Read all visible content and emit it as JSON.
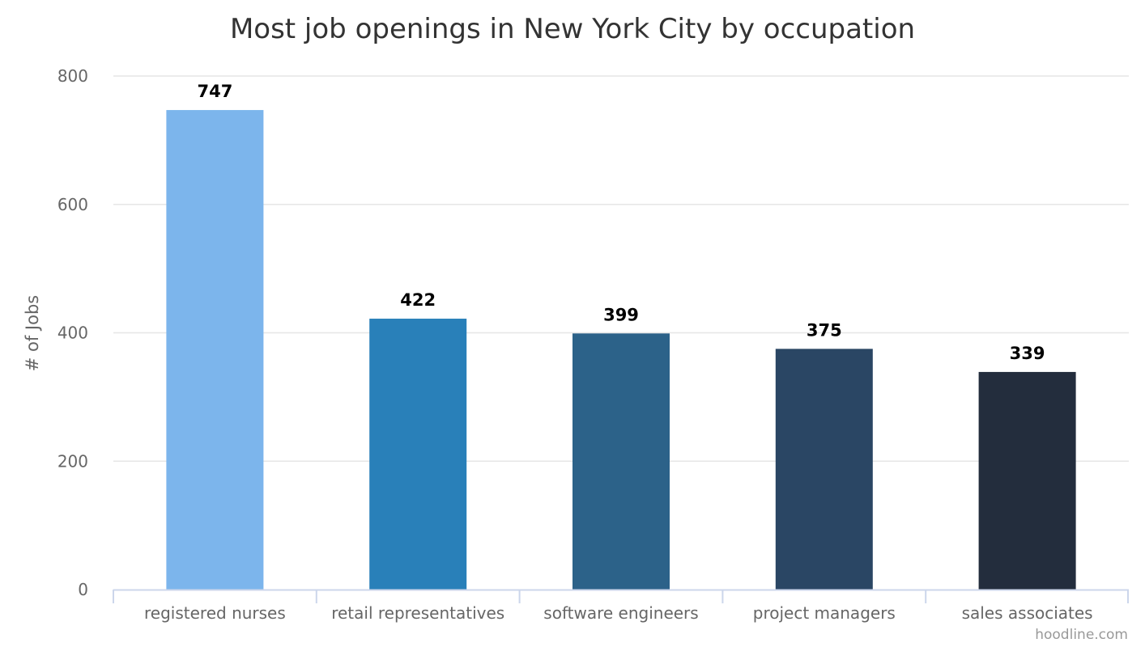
{
  "chart_data": {
    "type": "bar",
    "title": "Most job openings in New York City by occupation",
    "xlabel": "",
    "ylabel": "# of Jobs",
    "categories": [
      "registered nurses",
      "retail representatives",
      "software engineers",
      "project managers",
      "sales associates"
    ],
    "values": [
      747,
      422,
      399,
      375,
      339
    ],
    "colors": [
      "#7cb5ec",
      "#2980b9",
      "#2c6289",
      "#2a4664",
      "#232d3d"
    ],
    "ylim": [
      0,
      800
    ],
    "yticks": [
      0,
      200,
      400,
      600,
      800
    ],
    "grid": true,
    "legend": "none",
    "data_labels": [
      "747",
      "422",
      "399",
      "375",
      "339"
    ],
    "credit": "hoodline.com"
  }
}
